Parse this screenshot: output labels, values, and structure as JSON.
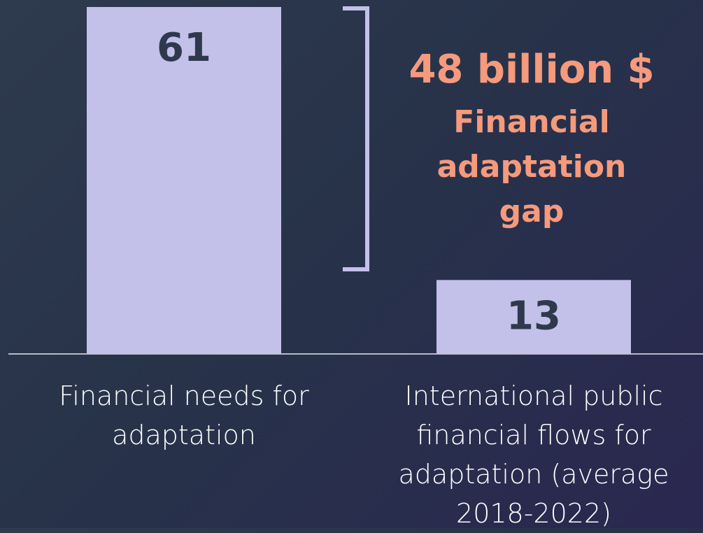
{
  "chart_data": {
    "type": "bar",
    "categories": [
      "Financial needs for adaptation",
      "International public financial flows for adaptation (average 2018-2022)"
    ],
    "values": [
      61,
      13
    ],
    "color": "#c3c0ea",
    "ylim": [
      0,
      61
    ],
    "annotation": {
      "title": "48 billion $",
      "text": "Financial adaptation gap",
      "color": "#f59a7c"
    }
  }
}
